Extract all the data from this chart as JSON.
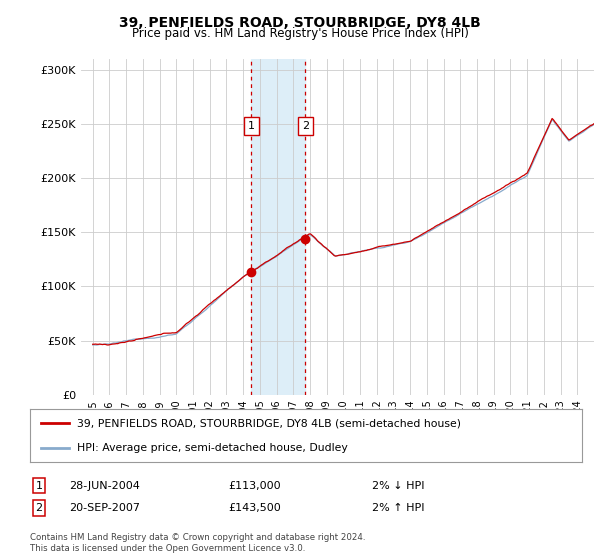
{
  "title": "39, PENFIELDS ROAD, STOURBRIDGE, DY8 4LB",
  "subtitle": "Price paid vs. HM Land Registry's House Price Index (HPI)",
  "legend_line1": "39, PENFIELDS ROAD, STOURBRIDGE, DY8 4LB (semi-detached house)",
  "legend_line2": "HPI: Average price, semi-detached house, Dudley",
  "footnote": "Contains HM Land Registry data © Crown copyright and database right 2024.\nThis data is licensed under the Open Government Licence v3.0.",
  "transaction1_date": "28-JUN-2004",
  "transaction1_price": "£113,000",
  "transaction1_hpi": "2% ↓ HPI",
  "transaction1_year": 2004.49,
  "transaction1_value": 113000,
  "transaction2_date": "20-SEP-2007",
  "transaction2_price": "£143,500",
  "transaction2_hpi": "2% ↑ HPI",
  "transaction2_year": 2007.72,
  "transaction2_value": 143500,
  "color_price": "#cc0000",
  "color_hpi": "#88aacc",
  "color_shade": "#ddeef8",
  "ylim": [
    0,
    310000
  ],
  "yticks": [
    0,
    50000,
    100000,
    150000,
    200000,
    250000,
    300000
  ],
  "background": "#ffffff",
  "grid_color": "#cccccc"
}
